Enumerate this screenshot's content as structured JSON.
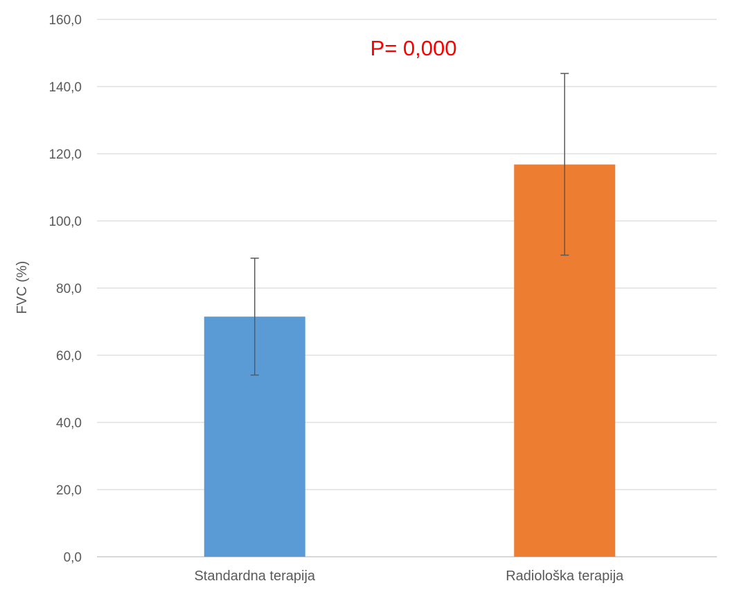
{
  "chart_data": {
    "type": "bar",
    "categories": [
      "Standardna terapija",
      "Radiološka terapija"
    ],
    "values": [
      71.5,
      116.8
    ],
    "error_low": [
      54.1,
      89.8
    ],
    "error_high": [
      88.9,
      143.9
    ],
    "colors": [
      "#5b9bd5",
      "#ed7d31"
    ],
    "ylabel": "FVC (%)",
    "xlabel": "",
    "title": "",
    "ylim": [
      0,
      160
    ],
    "yticks": [
      0,
      20,
      40,
      60,
      80,
      100,
      120,
      140,
      160
    ],
    "ytick_labels": [
      "0,0",
      "20,0",
      "40,0",
      "60,0",
      "80,0",
      "100,0",
      "120,0",
      "140,0",
      "160,0"
    ],
    "grid": true,
    "annotation": "P= 0,000",
    "annotation_color": "#ff0000"
  }
}
